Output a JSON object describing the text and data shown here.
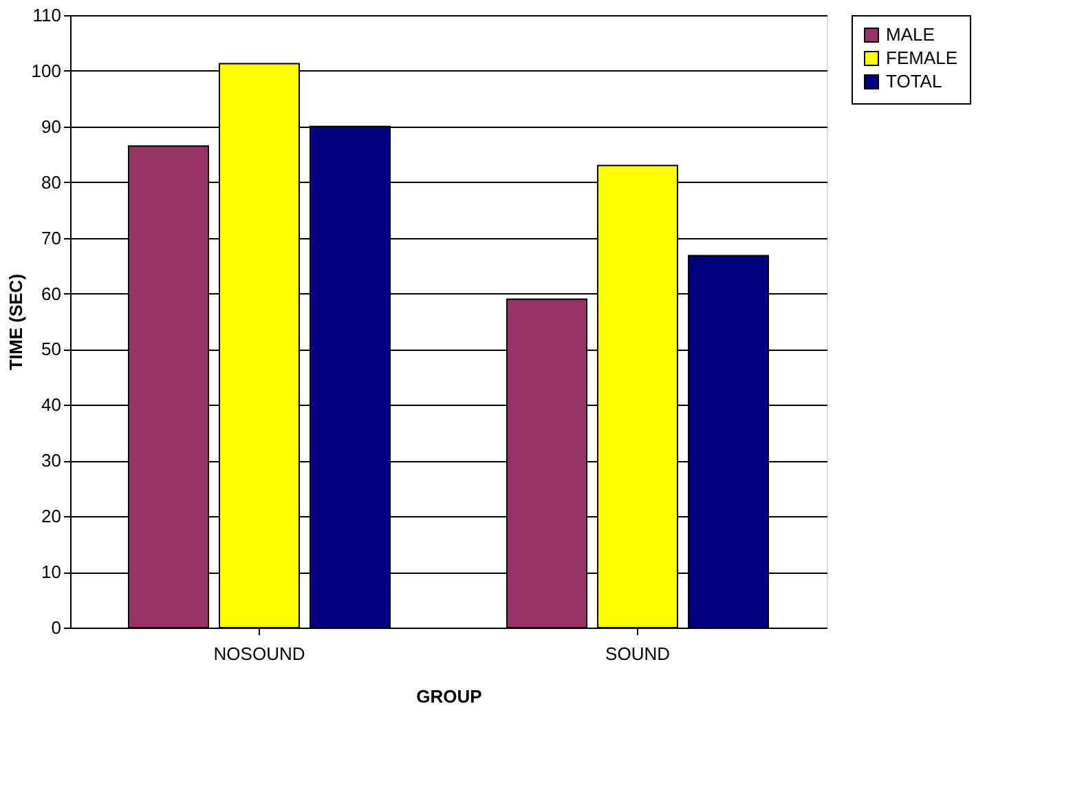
{
  "chart_data": {
    "type": "bar",
    "xlabel": "GROUP",
    "ylabel": "TIME (SEC)",
    "categories": [
      "NOSOUND",
      "SOUND"
    ],
    "series": [
      {
        "name": "MALE",
        "color": "#993366",
        "values": [
          86.5,
          59
        ]
      },
      {
        "name": "FEMALE",
        "color": "#ffff00",
        "values": [
          101.3,
          83
        ]
      },
      {
        "name": "TOTAL",
        "color": "#000080",
        "values": [
          90,
          66.8
        ]
      }
    ],
    "ylim": [
      0,
      110
    ],
    "yticks": [
      0,
      10,
      20,
      30,
      40,
      50,
      60,
      70,
      80,
      90,
      100,
      110
    ],
    "grid": "y",
    "legend": "right"
  }
}
